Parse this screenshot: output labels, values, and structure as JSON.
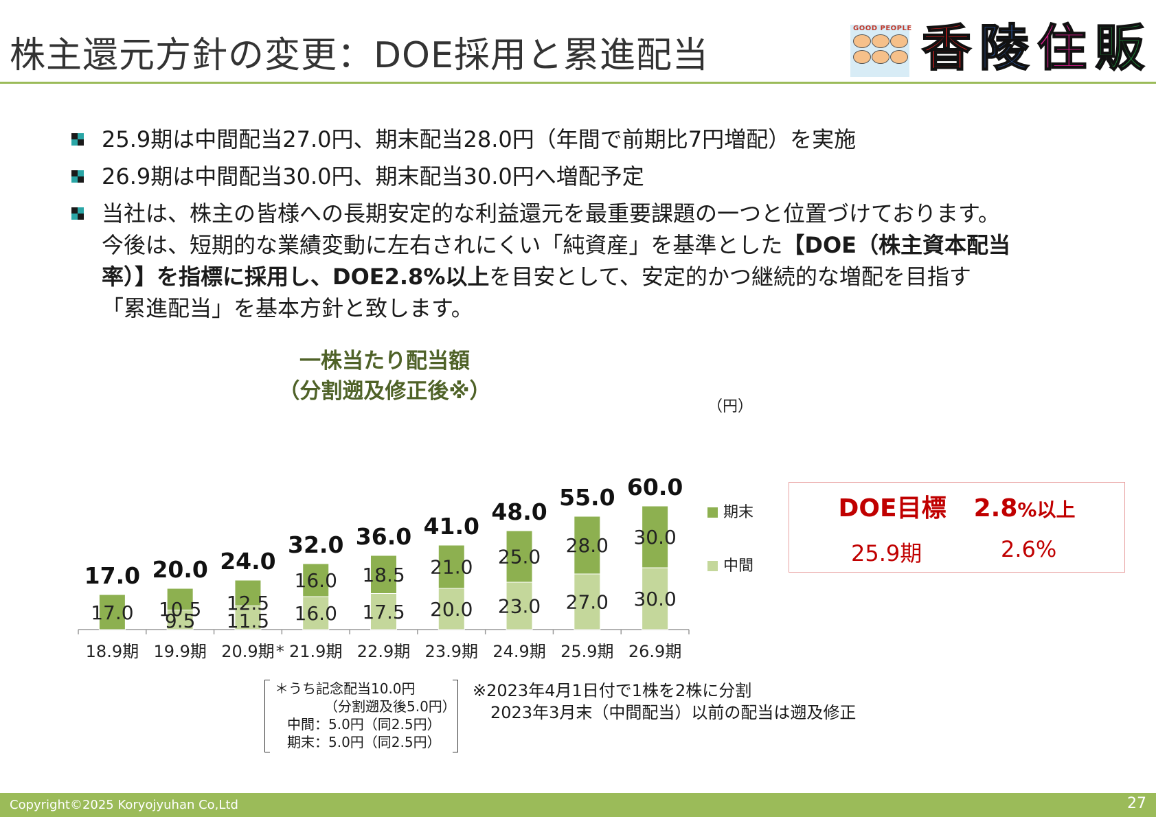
{
  "title": "株主還元方針の変更：DOE採用と累進配当",
  "logo": {
    "tagline": "GOOD PEOPLE",
    "chars": [
      "香",
      "陵",
      "住",
      "販"
    ],
    "colors": [
      "#e02020",
      "#2e5fb0",
      "#d81b8c",
      "#1f8f3a"
    ]
  },
  "bullets": [
    {
      "text": "25.9期は中間配当27.0円、期末配当28.0円（年間で前期比7円増配）を実施"
    },
    {
      "text": "26.9期は中間配当30.0円、期末配当30.0円へ増配予定"
    },
    {
      "line1": "当社は、株主の皆様への長期安定的な利益還元を最重要課題の一つと位置づけております。",
      "line2a": "今後は、短期的な業績変動に左右されにくい「純資産」を基準とした",
      "line2b": "【DOE（株主資本配当",
      "line3a": "率）】を指標に採用し、DOE2.8%以上",
      "line3b": "を目安として、安定的かつ継続的な増配を目指す",
      "line4": "「累進配当」を基本方針と致します。"
    }
  ],
  "chart_title_1": "一株当たり配当額",
  "chart_title_2": "（分割遡及修正後※）",
  "unit": "（円）",
  "colors": {
    "kimatsu": "#8db050",
    "chukan": "#c4d79b",
    "accent": "#9bbb59",
    "doe_red": "#c00000"
  },
  "chart_data": {
    "type": "bar",
    "stacked": true,
    "categories": [
      "18.9期",
      "19.9期",
      "20.9期",
      "21.9期",
      "22.9期",
      "23.9期",
      "24.9期",
      "25.9期",
      "26.9期"
    ],
    "category_marks": [
      "",
      "",
      "",
      "*",
      "",
      "",
      "",
      "",
      ""
    ],
    "series": [
      {
        "name": "中間",
        "values": [
          null,
          9.5,
          11.5,
          16.0,
          17.5,
          20.0,
          23.0,
          27.0,
          30.0
        ],
        "labels": [
          "",
          "9.5",
          "11.5",
          "16.0",
          "17.5",
          "20.0",
          "23.0",
          "27.0",
          "30.0"
        ]
      },
      {
        "name": "期末",
        "values": [
          17.0,
          10.5,
          12.5,
          16.0,
          18.5,
          21.0,
          25.0,
          28.0,
          30.0
        ],
        "labels": [
          "17.0",
          "10.5",
          "12.5",
          "16.0",
          "18.5",
          "21.0",
          "25.0",
          "28.0",
          "30.0"
        ]
      }
    ],
    "totals": [
      "17.0",
      "20.0",
      "24.0",
      "32.0",
      "36.0",
      "41.0",
      "48.0",
      "55.0",
      "60.0"
    ],
    "ylim": [
      0,
      60
    ],
    "legend": [
      "期末",
      "中間"
    ],
    "legend_position": "right",
    "grid": false
  },
  "doe": {
    "label": "DOE目標",
    "value": "2.8",
    "suffix": "%以上",
    "period": "25.9期",
    "actual": "2.6%"
  },
  "note_lines": [
    "＊うち記念配当10.0円",
    "（分割遡及後5.0円）",
    "中間：5.0円（同2.5円）",
    "期末：5.0円（同2.5円）"
  ],
  "split_note": [
    "※2023年4月1日付で1株を2株に分割",
    "2023年3月末（中間配当）以前の配当は遡及修正"
  ],
  "footer": {
    "copyright": "Copyright©2025 Koryojyuhan Co,Ltd",
    "page": "27"
  }
}
